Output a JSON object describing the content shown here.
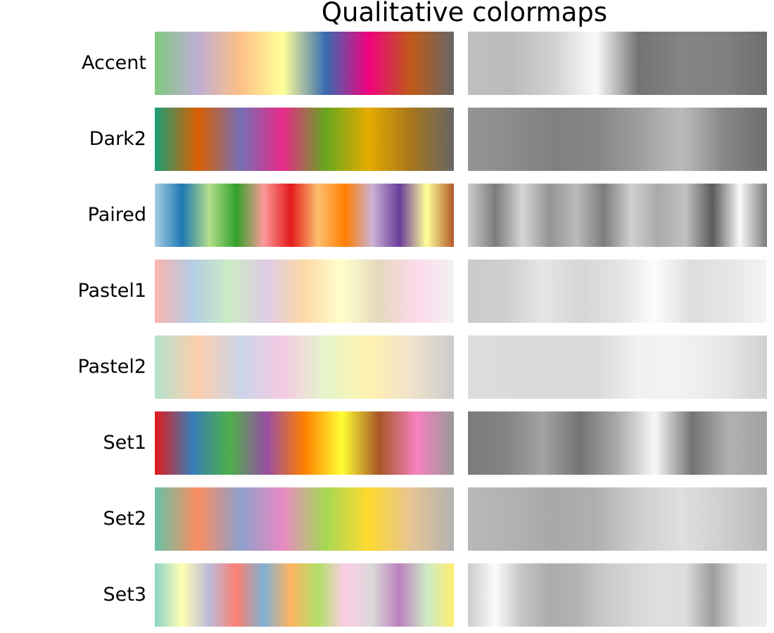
{
  "chart_data": {
    "type": "heatmap",
    "title": "Qualitative colormaps",
    "columns": [
      "color",
      "grayscale lightness"
    ],
    "colormaps": [
      {
        "name": "Accent",
        "colors": [
          "#7fc97f",
          "#beaed4",
          "#fdc086",
          "#ffff99",
          "#386cb0",
          "#f0027f",
          "#bf5b17",
          "#666666"
        ]
      },
      {
        "name": "Dark2",
        "colors": [
          "#1b9e77",
          "#d95f02",
          "#7570b3",
          "#e7298a",
          "#66a61e",
          "#e6ab02",
          "#a6761d",
          "#666666"
        ]
      },
      {
        "name": "Paired",
        "colors": [
          "#a6cee3",
          "#1f78b4",
          "#b2df8a",
          "#33a02c",
          "#fb9a99",
          "#e31a1c",
          "#fdbf6f",
          "#ff7f00",
          "#cab2d6",
          "#6a3d9a",
          "#ffff99",
          "#b15928"
        ]
      },
      {
        "name": "Pastel1",
        "colors": [
          "#fbb4ae",
          "#b3cde3",
          "#ccebc5",
          "#decbe4",
          "#fed9a6",
          "#ffffcc",
          "#e5d8bd",
          "#fddaec",
          "#f2f2f2"
        ]
      },
      {
        "name": "Pastel2",
        "colors": [
          "#b3e2cd",
          "#fdcdac",
          "#cbd5e8",
          "#f4cae4",
          "#e6f5c9",
          "#fff2ae",
          "#f1e2cc",
          "#cccccc"
        ]
      },
      {
        "name": "Set1",
        "colors": [
          "#e41a1c",
          "#377eb8",
          "#4daf4a",
          "#984ea3",
          "#ff7f00",
          "#ffff33",
          "#a65628",
          "#f781bf",
          "#999999"
        ]
      },
      {
        "name": "Set2",
        "colors": [
          "#66c2a5",
          "#fc8d62",
          "#8da0cb",
          "#e78ac3",
          "#a6d854",
          "#ffd92f",
          "#e5c494",
          "#b3b3b3"
        ]
      },
      {
        "name": "Set3",
        "colors": [
          "#8dd3c7",
          "#ffffb3",
          "#bebada",
          "#fb8072",
          "#80b1d3",
          "#fdb462",
          "#b3de69",
          "#fccde5",
          "#d9d9d9",
          "#bc80bd",
          "#ccebc5",
          "#ffed6f"
        ]
      }
    ]
  }
}
